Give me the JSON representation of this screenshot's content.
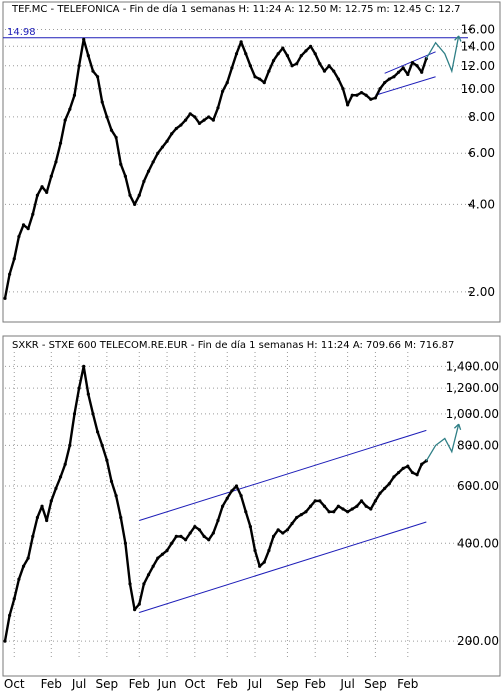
{
  "colors": {
    "price": "#000000",
    "trendline": "#1d1db8",
    "projection": "#2f7f86",
    "grid": "#9a9a9a",
    "frame": "#7a7a7a",
    "background": "#ffffff"
  },
  "chart_data": [
    {
      "type": "line",
      "id": "telefonica",
      "title": "TEF.MC - TELEFONICA - Fin de día 1 semanas  H: 11:24  A: 12.50  M: 12.75  m: 12.45  C: 12.7",
      "scale": "log",
      "ylim": [
        1.6,
        17.8
      ],
      "yticks": [
        "16.00",
        "14.00",
        "12.00",
        "10.00",
        "8.00",
        "6.00",
        "4.00",
        "2.00"
      ],
      "ytick_values": [
        16,
        14,
        12,
        10,
        8,
        6,
        4,
        2
      ],
      "xlim": [
        0,
        100
      ],
      "hline": {
        "value": 14.98,
        "label": "14.98"
      },
      "series": [
        {
          "x": [
            0,
            1,
            2,
            3,
            4,
            5,
            6,
            7,
            8,
            9,
            10,
            11,
            12,
            13,
            14,
            15,
            16,
            17,
            18,
            19,
            20,
            21,
            22,
            23,
            24,
            25,
            26,
            27,
            28,
            29,
            30,
            31,
            32,
            33,
            34,
            35,
            36,
            37,
            38,
            39,
            40,
            41,
            42,
            43,
            44,
            45,
            46,
            47,
            48,
            49,
            50,
            51,
            52,
            53,
            54,
            55,
            56,
            57,
            58,
            59,
            60,
            61,
            62,
            63,
            64,
            65,
            66,
            67,
            68,
            69,
            70,
            71,
            72,
            73,
            74,
            75,
            76,
            77,
            78,
            79,
            80,
            81,
            82,
            83,
            84,
            85,
            86,
            87,
            88,
            89,
            90,
            91
          ],
          "y": [
            1.9,
            2.3,
            2.6,
            3.1,
            3.4,
            3.3,
            3.7,
            4.3,
            4.6,
            4.4,
            5.0,
            5.6,
            6.5,
            7.8,
            8.5,
            9.5,
            12.0,
            14.8,
            13.0,
            11.5,
            11.0,
            9.0,
            8.0,
            7.2,
            6.8,
            5.5,
            5.0,
            4.3,
            4.0,
            4.3,
            4.8,
            5.2,
            5.6,
            6.0,
            6.3,
            6.6,
            7.0,
            7.3,
            7.5,
            7.8,
            8.2,
            8.0,
            7.6,
            7.8,
            8.0,
            7.8,
            8.6,
            9.8,
            10.5,
            11.8,
            13.2,
            14.5,
            13.2,
            12.0,
            11.0,
            10.8,
            10.5,
            11.5,
            12.5,
            13.2,
            13.8,
            13.0,
            12.0,
            12.2,
            13.0,
            13.5,
            14.0,
            13.2,
            12.2,
            11.5,
            12.0,
            11.5,
            10.8,
            10.0,
            8.8,
            9.5,
            9.5,
            9.7,
            9.5,
            9.2,
            9.3,
            10.0,
            10.5,
            10.8,
            11.0,
            11.4,
            11.8,
            11.2,
            12.3,
            12.0,
            11.4,
            12.7
          ]
        }
      ],
      "channel": [
        {
          "x1": 82,
          "y1": 11.3,
          "x2": 93,
          "y2": 13.4
        },
        {
          "x1": 80,
          "y1": 9.5,
          "x2": 93,
          "y2": 11.0
        }
      ],
      "projection": {
        "x": [
          91,
          93,
          95,
          96.5,
          98
        ],
        "y": [
          12.7,
          14.4,
          13.2,
          11.5,
          15.2
        ]
      },
      "xticks": []
    },
    {
      "type": "line",
      "id": "stoxx-telecom",
      "title": "SXKR - STXE 600 TELECOM.RE.EUR - Fin de día 1 semanas  H: 11:24  A: 709.66  M: 716.87",
      "scale": "log",
      "ylim": [
        175,
        1550
      ],
      "yticks": [
        "1,400.00",
        "1,200.00",
        "1,000.00",
        "800.00",
        "600.00",
        "400.00",
        "200.00"
      ],
      "ytick_values": [
        1400,
        1200,
        1000,
        800,
        600,
        400,
        200
      ],
      "xlim": [
        0,
        100
      ],
      "series": [
        {
          "x": [
            0,
            1,
            2,
            3,
            4,
            5,
            6,
            7,
            8,
            9,
            10,
            11,
            12,
            13,
            14,
            15,
            16,
            17,
            18,
            19,
            20,
            21,
            22,
            23,
            24,
            25,
            26,
            27,
            28,
            29,
            30,
            31,
            32,
            33,
            34,
            35,
            36,
            37,
            38,
            39,
            40,
            41,
            42,
            43,
            44,
            45,
            46,
            47,
            48,
            49,
            50,
            51,
            52,
            53,
            54,
            55,
            56,
            57,
            58,
            59,
            60,
            61,
            62,
            63,
            64,
            65,
            66,
            67,
            68,
            69,
            70,
            71,
            72,
            73,
            74,
            75,
            76,
            77,
            78,
            79,
            80,
            81,
            82,
            83,
            84,
            85,
            86,
            87,
            88,
            89,
            90,
            91
          ],
          "y": [
            200,
            240,
            270,
            310,
            340,
            360,
            420,
            480,
            520,
            470,
            540,
            590,
            640,
            700,
            800,
            1000,
            1200,
            1400,
            1150,
            1000,
            880,
            800,
            720,
            620,
            560,
            480,
            400,
            300,
            250,
            260,
            300,
            320,
            340,
            360,
            370,
            380,
            400,
            420,
            420,
            410,
            430,
            450,
            440,
            420,
            410,
            430,
            470,
            520,
            550,
            580,
            600,
            560,
            500,
            450,
            380,
            340,
            350,
            380,
            420,
            440,
            430,
            440,
            460,
            480,
            490,
            500,
            520,
            540,
            540,
            520,
            500,
            500,
            520,
            510,
            500,
            510,
            520,
            540,
            520,
            510,
            540,
            570,
            590,
            610,
            640,
            660,
            680,
            690,
            660,
            650,
            700,
            717
          ]
        }
      ],
      "channel": [
        {
          "x1": 29,
          "y1": 470,
          "x2": 91,
          "y2": 890
        },
        {
          "x1": 29,
          "y1": 245,
          "x2": 91,
          "y2": 465
        }
      ],
      "projection": {
        "x": [
          91,
          93,
          95,
          96.5,
          98
        ],
        "y": [
          717,
          800,
          840,
          765,
          930
        ]
      },
      "xticks": [
        {
          "x": 2,
          "label": "Oct"
        },
        {
          "x": 10,
          "label": "Feb"
        },
        {
          "x": 16,
          "label": "Jul"
        },
        {
          "x": 22,
          "label": "Sep"
        },
        {
          "x": 29,
          "label": "Feb"
        },
        {
          "x": 35,
          "label": "Jun"
        },
        {
          "x": 41,
          "label": "Oct"
        },
        {
          "x": 48,
          "label": "Feb"
        },
        {
          "x": 54,
          "label": "Jul"
        },
        {
          "x": 61,
          "label": "Sep"
        },
        {
          "x": 67,
          "label": "Feb"
        },
        {
          "x": 74,
          "label": "Jul"
        },
        {
          "x": 80,
          "label": "Sep"
        },
        {
          "x": 87,
          "label": "Feb"
        }
      ]
    }
  ]
}
